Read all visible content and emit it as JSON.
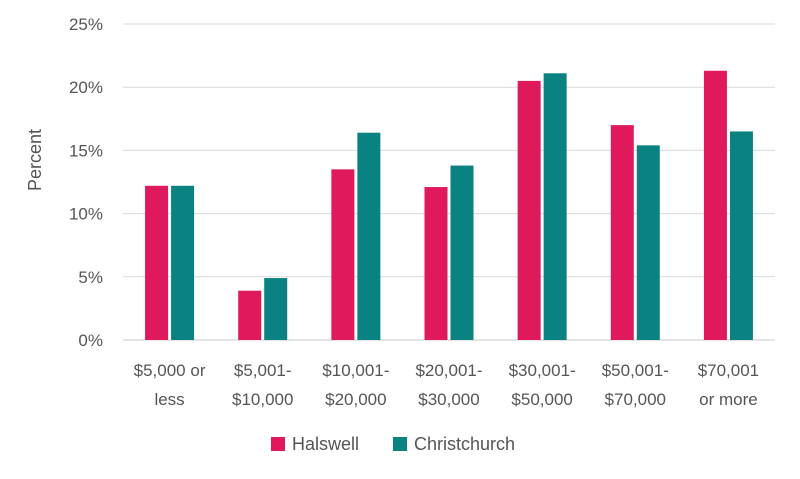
{
  "chart_data": {
    "type": "bar",
    "ylabel": "Percent",
    "ylim": [
      0,
      25
    ],
    "yticks": [
      "0%",
      "5%",
      "10%",
      "15%",
      "20%",
      "25%"
    ],
    "grid": true,
    "legend_position": "bottom",
    "categories": [
      [
        "$5,000 or",
        "less"
      ],
      [
        "$5,001-",
        "$10,000"
      ],
      [
        "$10,001-",
        "$20,000"
      ],
      [
        "$20,001-",
        "$30,000"
      ],
      [
        "$30,001-",
        "$50,000"
      ],
      [
        "$50,001-",
        "$70,000"
      ],
      [
        "$70,001",
        "or more"
      ]
    ],
    "series": [
      {
        "name": "Halswell",
        "color": "#E0185C",
        "values": [
          12.2,
          3.9,
          13.5,
          12.1,
          20.5,
          17.0,
          21.3
        ]
      },
      {
        "name": "Christchurch",
        "color": "#0A8282",
        "values": [
          12.2,
          4.9,
          16.4,
          13.8,
          21.1,
          15.4,
          16.5
        ]
      }
    ]
  }
}
